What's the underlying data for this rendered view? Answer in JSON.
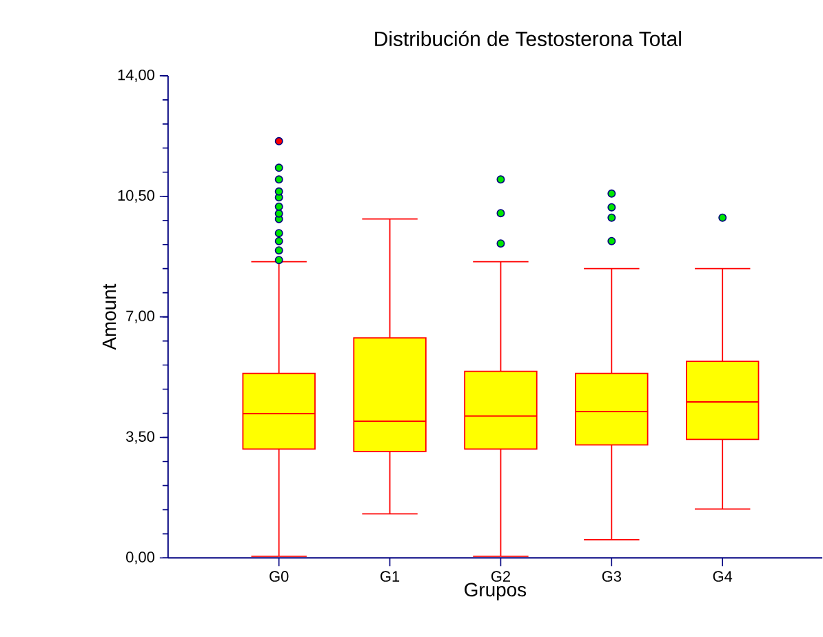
{
  "chart_data": {
    "type": "box",
    "title": "Distribución de Testosterona Total",
    "xlabel": "Grupos",
    "ylabel": "Amount",
    "categories": [
      "G0",
      "G1",
      "G2",
      "G3",
      "G4"
    ],
    "ylim": [
      0,
      14
    ],
    "yticks": [
      {
        "value": 0,
        "label": "0,00"
      },
      {
        "value": 3.5,
        "label": "3,50"
      },
      {
        "value": 7,
        "label": "7,00"
      },
      {
        "value": 10.5,
        "label": "10,50"
      },
      {
        "value": 14,
        "label": "14,00"
      }
    ],
    "series": [
      {
        "color": "#ffff00",
        "boxes": [
          {
            "low": 0.05,
            "q1": 3.16,
            "median": 4.19,
            "q3": 5.36,
            "high": 8.6,
            "outliers": [
              8.65,
              8.93,
              9.2,
              9.43,
              9.84,
              10.0,
              10.2,
              10.47,
              10.64,
              10.99,
              11.33
            ]
          },
          {
            "low": 1.28,
            "q1": 3.09,
            "median": 3.97,
            "q3": 6.39,
            "high": 9.84
          },
          {
            "low": 0.05,
            "q1": 3.16,
            "median": 4.12,
            "q3": 5.42,
            "high": 8.6,
            "outliers": [
              9.13,
              10.01,
              10.99
            ]
          },
          {
            "low": 0.53,
            "q1": 3.28,
            "median": 4.25,
            "q3": 5.36,
            "high": 8.4,
            "outliers": [
              9.2,
              9.88,
              10.18,
              10.58
            ]
          },
          {
            "low": 1.42,
            "q1": 3.44,
            "median": 4.53,
            "q3": 5.71,
            "high": 8.4,
            "outliers": [
              9.88
            ]
          }
        ]
      },
      {
        "type": "scatter",
        "color": "#ff0000",
        "marker": "circle",
        "x": [
          "G0"
        ],
        "values": [
          12.1
        ]
      }
    ]
  }
}
